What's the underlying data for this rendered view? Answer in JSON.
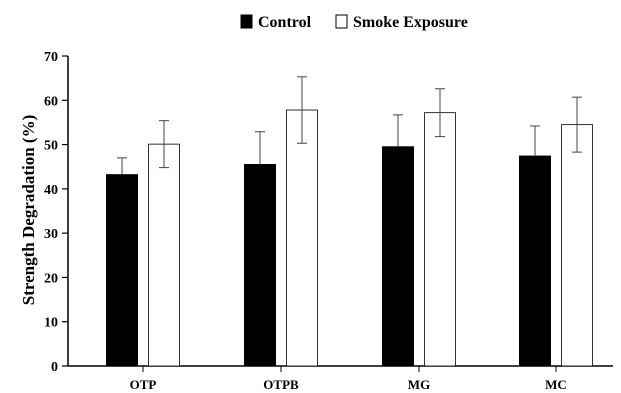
{
  "chart_data": {
    "type": "bar",
    "title": "",
    "xlabel": "",
    "ylabel": "Strength Degradation  (%)",
    "ylim": [
      0,
      70
    ],
    "yticks": [
      0,
      10,
      20,
      30,
      40,
      50,
      60,
      70
    ],
    "categories": [
      "OTP",
      "OTPB",
      "MG",
      "MC"
    ],
    "series": [
      {
        "name": "Control",
        "color": "#000000",
        "values": [
          43.2,
          45.5,
          49.5,
          47.4
        ],
        "error": [
          3.8,
          7.4,
          7.2,
          6.8
        ]
      },
      {
        "name": "Smoke Exposure",
        "color": "#ffffff",
        "values": [
          50.1,
          57.8,
          57.2,
          54.5
        ],
        "error": [
          5.3,
          7.5,
          5.4,
          6.2
        ]
      }
    ],
    "legend_position": "top",
    "grid": false
  }
}
